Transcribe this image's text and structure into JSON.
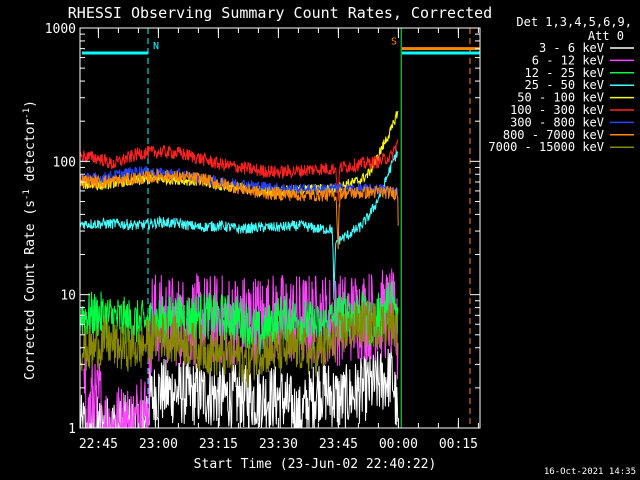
{
  "chart_data": {
    "type": "line",
    "title": "RHESSI Observing Summary Count Rates, Corrected",
    "xlabel": "Start Time (23-Jun-02 22:40:22)",
    "ylabel_main": "Corrected Count Rate (s",
    "ylabel_sup1": "-1",
    "ylabel_mid": " detector",
    "ylabel_sup2": "-1",
    "ylabel_end": ")",
    "yscale": "log",
    "ylim": [
      1,
      1000
    ],
    "xlim_minutes": [
      0,
      100
    ],
    "x_ticks": [
      {
        "label": "22:45",
        "minutes": 4.6
      },
      {
        "label": "23:00",
        "minutes": 19.6
      },
      {
        "label": "23:15",
        "minutes": 34.6
      },
      {
        "label": "23:30",
        "minutes": 49.6
      },
      {
        "label": "23:45",
        "minutes": 64.6
      },
      {
        "label": "00:00",
        "minutes": 79.6
      },
      {
        "label": "00:15",
        "minutes": 94.6
      }
    ],
    "y_ticks": [
      {
        "label": "1",
        "value": 1
      },
      {
        "label": "10",
        "value": 10
      },
      {
        "label": "100",
        "value": 100
      },
      {
        "label": "1000",
        "value": 1000
      }
    ],
    "legend_header_1": "Det 1,3,4,5,6,9,",
    "legend_header_2": "Att 0",
    "legend_position": "right",
    "series": [
      {
        "name": "3 - 6 keV",
        "color": "#ffffff",
        "x": [
          0,
          4,
          8,
          16,
          17,
          20,
          30,
          40,
          50,
          55,
          60,
          65,
          70,
          75,
          78,
          79.5
        ],
        "y": [
          1,
          1,
          1,
          1,
          1.6,
          1.9,
          1.8,
          1.7,
          1.7,
          1.2,
          2,
          1.6,
          1.9,
          2.2,
          2.5,
          1
        ]
      },
      {
        "name": "6 - 12 keV",
        "color": "#ff44ff",
        "x": [
          1,
          2,
          3,
          4,
          5,
          5.5,
          10,
          14,
          15,
          17,
          18,
          20,
          25,
          30,
          40,
          50,
          55,
          60,
          65,
          70,
          75,
          78,
          79.5
        ],
        "y": [
          1.8,
          1,
          1.8,
          1.3,
          1.7,
          1,
          1,
          1,
          1.7,
          1,
          7,
          6.5,
          6.3,
          6.5,
          6.5,
          6.6,
          6.5,
          6.6,
          6.5,
          7,
          7,
          7.2,
          4
        ]
      },
      {
        "name": "12 - 25 keV",
        "color": "#00ff44",
        "x": [
          0,
          5,
          10,
          15,
          20,
          30,
          40,
          45,
          50,
          55,
          60,
          65,
          70,
          72,
          75,
          78,
          79.5
        ],
        "y": [
          7,
          7,
          6.5,
          6,
          6.5,
          7,
          6.6,
          5,
          6.7,
          6.4,
          5.6,
          7,
          7.5,
          6,
          7,
          9,
          6
        ]
      },
      {
        "name": "25 - 50 keV",
        "color": "#44ffff",
        "x": [
          0,
          5,
          10,
          15,
          20,
          25,
          30,
          35,
          40,
          45,
          50,
          55,
          60,
          63,
          63.5,
          64,
          65,
          67,
          70,
          72,
          74,
          76,
          78,
          79.5
        ],
        "y": [
          34,
          34,
          34,
          33,
          35,
          34,
          32,
          33,
          31,
          32,
          32,
          33,
          31,
          31,
          9,
          25,
          26,
          28,
          32,
          38,
          48,
          65,
          95,
          120
        ]
      },
      {
        "name": "50 - 100 keV",
        "color": "#ffff00",
        "x": [
          0,
          5,
          10,
          15,
          20,
          25,
          30,
          35,
          40,
          45,
          50,
          55,
          60,
          64,
          66,
          70,
          72,
          74,
          76,
          78,
          79.5
        ],
        "y": [
          68,
          66,
          70,
          72,
          74,
          73,
          70,
          66,
          63,
          60,
          60,
          61,
          62,
          63,
          66,
          72,
          80,
          100,
          135,
          175,
          240
        ]
      },
      {
        "name": "100 - 300 keV",
        "color": "#ff2222",
        "x": [
          0,
          5,
          8,
          10,
          15,
          20,
          25,
          30,
          35,
          40,
          45,
          50,
          55,
          60,
          64,
          64.5,
          65,
          70,
          75,
          78,
          79.5
        ],
        "y": [
          110,
          105,
          95,
          100,
          115,
          118,
          115,
          105,
          95,
          90,
          85,
          83,
          85,
          88,
          88,
          50,
          90,
          95,
          100,
          110,
          140
        ]
      },
      {
        "name": "300 - 800 keV",
        "color": "#2244ff",
        "x": [
          0,
          5,
          10,
          15,
          20,
          25,
          30,
          35,
          40,
          45,
          50,
          55,
          60,
          65,
          70,
          75,
          78,
          79.5
        ],
        "y": [
          75,
          75,
          80,
          85,
          82,
          80,
          75,
          70,
          68,
          65,
          63,
          62,
          62,
          63,
          62,
          62,
          60,
          60
        ]
      },
      {
        "name": "800 - 7000 keV",
        "color": "#ff8800",
        "x": [
          0,
          5,
          10,
          15,
          20,
          25,
          30,
          35,
          40,
          45,
          50,
          55,
          60,
          64,
          64.5,
          65,
          70,
          75,
          78,
          79.5,
          79.6
        ],
        "y": [
          72,
          70,
          72,
          75,
          78,
          76,
          74,
          68,
          63,
          58,
          57,
          56,
          56,
          56,
          20,
          58,
          58,
          59,
          58,
          58,
          16
        ]
      },
      {
        "name": "7000 - 15000 keV",
        "color": "#888800",
        "x": [
          0,
          3,
          6,
          10,
          13,
          15,
          20,
          25,
          30,
          35,
          40,
          42,
          45,
          50,
          55,
          58,
          60,
          62,
          65,
          70,
          75,
          78,
          79.5
        ],
        "y": [
          4,
          3.8,
          4.5,
          4,
          4,
          4,
          5,
          4.5,
          4,
          3.5,
          3.5,
          3,
          3.8,
          3.7,
          4,
          3.5,
          3.8,
          4,
          5,
          6,
          6,
          6.2,
          5
        ]
      }
    ],
    "bars": [
      {
        "label": "N",
        "color": "#00ffff",
        "x_start": 0.5,
        "x_end": 17,
        "y": 650,
        "marker_x": 17
      },
      {
        "label": "S",
        "color": "#ff8800",
        "x_start": 80.5,
        "x_end": 100,
        "y": 700,
        "marker_x": 80.5
      }
    ],
    "extra_bars": [
      {
        "color": "#00ffff",
        "x_start": 80.5,
        "x_end": 100,
        "y": 650
      }
    ],
    "vlines": [
      {
        "x": 17,
        "color": "#00ffff",
        "style": "dashed"
      },
      {
        "x": 80.3,
        "color": "#00ff44",
        "style": "solid"
      },
      {
        "x": 97.5,
        "color": "#ff8800",
        "style": "dashed"
      }
    ]
  },
  "footer": {
    "timestamp": "16-Oct-2021 14:35"
  }
}
